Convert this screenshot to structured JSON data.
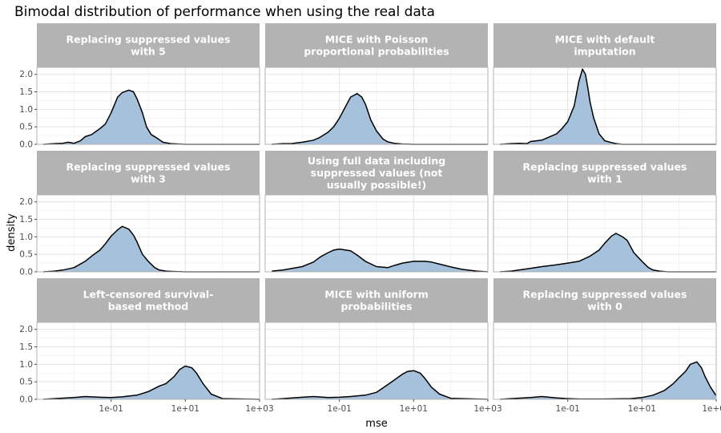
{
  "chart_data": {
    "type": "area",
    "title": "Bimodal distribution of performance when using the real data",
    "xlabel": "mse",
    "ylabel": "density",
    "x_scale": "log10",
    "xlim": [
      0.001,
      1000
    ],
    "ylim": [
      0,
      2.2
    ],
    "x_ticks": [
      {
        "value": 0.1,
        "label": "1e-01"
      },
      {
        "value": 10,
        "label": "1e+01"
      },
      {
        "value": 1000,
        "label": "1e+03"
      }
    ],
    "y_ticks": [
      {
        "value": 0.0,
        "label": "0.0"
      },
      {
        "value": 0.5,
        "label": "0.5"
      },
      {
        "value": 1.0,
        "label": "1.0"
      },
      {
        "value": 1.5,
        "label": "1.5"
      },
      {
        "value": 2.0,
        "label": "2.0"
      }
    ],
    "grid": true,
    "fill_color": "#a5c1dc",
    "line_color": "#000000",
    "strip_color": "#b3b3b3",
    "panels": [
      {
        "title_lines": [
          "Replacing suppressed values",
          "with 5"
        ],
        "x": [
          0.0015,
          0.003,
          0.005,
          0.007,
          0.01,
          0.015,
          0.02,
          0.03,
          0.05,
          0.07,
          0.1,
          0.15,
          0.2,
          0.3,
          0.4,
          0.5,
          0.7,
          0.9,
          1.2,
          1.6,
          2.5,
          4,
          10,
          100,
          1000
        ],
        "y": [
          0.0,
          0.02,
          0.03,
          0.06,
          0.03,
          0.1,
          0.22,
          0.28,
          0.45,
          0.58,
          0.9,
          1.35,
          1.48,
          1.55,
          1.5,
          1.3,
          0.9,
          0.5,
          0.28,
          0.2,
          0.06,
          0.02,
          0.0,
          0.0,
          0.0
        ]
      },
      {
        "title_lines": [
          "MICE with Poisson",
          "proportional probabilities"
        ],
        "x": [
          0.0015,
          0.003,
          0.005,
          0.007,
          0.01,
          0.02,
          0.03,
          0.05,
          0.07,
          0.1,
          0.15,
          0.2,
          0.3,
          0.4,
          0.5,
          0.7,
          1,
          1.5,
          2,
          3,
          5,
          10,
          100,
          1000
        ],
        "y": [
          0.0,
          0.02,
          0.02,
          0.04,
          0.06,
          0.12,
          0.2,
          0.35,
          0.5,
          0.75,
          1.1,
          1.35,
          1.45,
          1.35,
          1.15,
          0.7,
          0.38,
          0.15,
          0.07,
          0.03,
          0.01,
          0.0,
          0.0,
          0.0
        ]
      },
      {
        "title_lines": [
          "MICE with default",
          "imputation"
        ],
        "x": [
          0.0015,
          0.003,
          0.005,
          0.008,
          0.01,
          0.02,
          0.03,
          0.05,
          0.07,
          0.1,
          0.15,
          0.2,
          0.25,
          0.3,
          0.35,
          0.4,
          0.5,
          0.7,
          1,
          1.5,
          2,
          3,
          10,
          100,
          1000
        ],
        "y": [
          0.0,
          0.02,
          0.03,
          0.02,
          0.08,
          0.12,
          0.2,
          0.3,
          0.45,
          0.65,
          1.1,
          1.8,
          2.15,
          2.0,
          1.6,
          1.2,
          0.75,
          0.3,
          0.1,
          0.05,
          0.02,
          0.0,
          0.0,
          0.0,
          0.0
        ]
      },
      {
        "title_lines": [
          "Replacing suppressed values",
          "with 3"
        ],
        "x": [
          0.0015,
          0.003,
          0.005,
          0.01,
          0.02,
          0.03,
          0.05,
          0.07,
          0.1,
          0.15,
          0.2,
          0.3,
          0.4,
          0.5,
          0.7,
          1,
          1.5,
          2,
          3,
          5,
          10,
          100,
          1000
        ],
        "y": [
          0.0,
          0.02,
          0.05,
          0.12,
          0.3,
          0.45,
          0.62,
          0.8,
          1.02,
          1.2,
          1.3,
          1.22,
          1.05,
          0.85,
          0.5,
          0.3,
          0.12,
          0.05,
          0.02,
          0.01,
          0.0,
          0.0,
          0.0
        ]
      },
      {
        "title_lines": [
          "Using full data including",
          "suppressed values (not",
          "usually possible!)"
        ],
        "x": [
          0.0015,
          0.003,
          0.01,
          0.02,
          0.03,
          0.05,
          0.07,
          0.1,
          0.2,
          0.3,
          0.5,
          1,
          2,
          3,
          5,
          10,
          20,
          30,
          50,
          100,
          200,
          500,
          1000
        ],
        "y": [
          0.02,
          0.05,
          0.15,
          0.28,
          0.42,
          0.55,
          0.62,
          0.65,
          0.6,
          0.48,
          0.3,
          0.15,
          0.12,
          0.18,
          0.25,
          0.3,
          0.3,
          0.28,
          0.22,
          0.14,
          0.07,
          0.02,
          0.0
        ]
      },
      {
        "title_lines": [
          "Replacing suppressed values",
          "with 1"
        ],
        "x": [
          0.0015,
          0.003,
          0.01,
          0.02,
          0.05,
          0.1,
          0.2,
          0.4,
          0.7,
          1,
          1.5,
          2,
          3,
          4,
          6,
          10,
          15,
          20,
          30,
          50,
          100,
          1000
        ],
        "y": [
          0.0,
          0.02,
          0.1,
          0.15,
          0.2,
          0.25,
          0.3,
          0.45,
          0.62,
          0.82,
          1.02,
          1.1,
          1.0,
          0.9,
          0.55,
          0.3,
          0.12,
          0.05,
          0.02,
          0.0,
          0.0,
          0.0
        ]
      },
      {
        "title_lines": [
          "Left-censored survival-",
          "based method"
        ],
        "x": [
          0.0015,
          0.003,
          0.01,
          0.02,
          0.05,
          0.1,
          0.2,
          0.5,
          1,
          2,
          3,
          5,
          7,
          10,
          15,
          20,
          30,
          50,
          100,
          1000
        ],
        "y": [
          0.0,
          0.02,
          0.05,
          0.08,
          0.06,
          0.05,
          0.07,
          0.12,
          0.22,
          0.38,
          0.45,
          0.65,
          0.85,
          0.95,
          0.9,
          0.75,
          0.45,
          0.15,
          0.02,
          0.0
        ]
      },
      {
        "title_lines": [
          "MICE with uniform",
          "probabilities"
        ],
        "x": [
          0.0015,
          0.003,
          0.01,
          0.02,
          0.05,
          0.1,
          0.2,
          0.5,
          1,
          2,
          3,
          5,
          7,
          10,
          15,
          20,
          30,
          50,
          100,
          1000
        ],
        "y": [
          0.0,
          0.02,
          0.06,
          0.08,
          0.05,
          0.06,
          0.08,
          0.12,
          0.2,
          0.42,
          0.55,
          0.72,
          0.8,
          0.82,
          0.75,
          0.6,
          0.35,
          0.15,
          0.03,
          0.0
        ]
      },
      {
        "title_lines": [
          "Replacing suppressed values",
          "with 0"
        ],
        "x": [
          0.0015,
          0.003,
          0.01,
          0.02,
          0.05,
          0.1,
          0.2,
          1,
          5,
          10,
          20,
          40,
          70,
          100,
          150,
          200,
          300,
          400,
          500,
          700,
          1000
        ],
        "y": [
          0.0,
          0.02,
          0.05,
          0.08,
          0.04,
          0.02,
          0.01,
          0.01,
          0.02,
          0.05,
          0.12,
          0.25,
          0.45,
          0.62,
          0.8,
          1.0,
          1.07,
          0.9,
          0.65,
          0.35,
          0.1
        ]
      }
    ]
  }
}
